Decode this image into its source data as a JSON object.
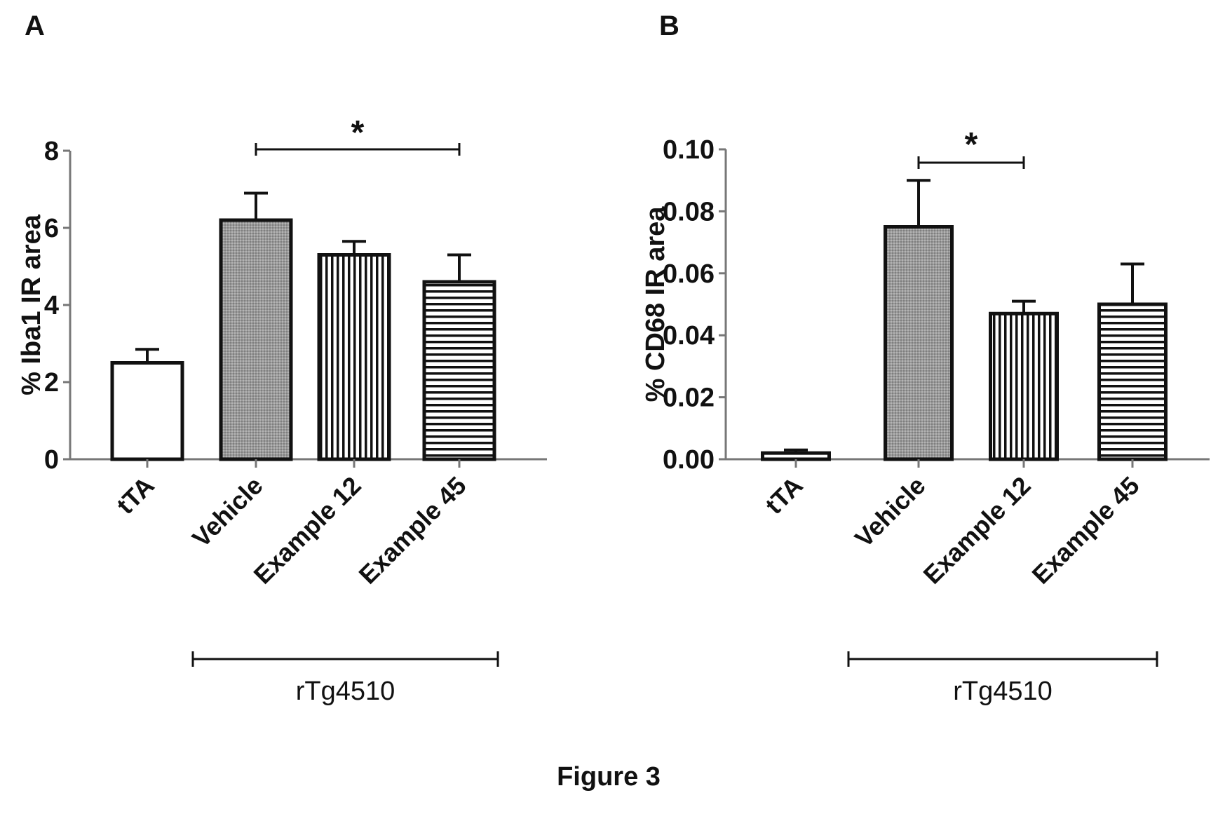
{
  "figure": {
    "caption": "Figure 3"
  },
  "chart_data": [
    {
      "panel": "A",
      "type": "bar",
      "ylabel": "% Iba1 IR area",
      "ylim": [
        0,
        8
      ],
      "yticks": [
        0,
        2,
        4,
        6,
        8
      ],
      "categories": [
        "tTA",
        "Vehicle",
        "Example 12",
        "Example 45"
      ],
      "values": [
        2.5,
        6.2,
        5.3,
        4.6
      ],
      "errors": [
        0.35,
        0.7,
        0.35,
        0.7
      ],
      "fills": [
        "white",
        "gray",
        "vertical-stripes",
        "horizontal-stripes"
      ],
      "significance": {
        "from": 1,
        "to": 3,
        "label": "*"
      },
      "group": {
        "from": 1,
        "to": 3,
        "label": "rTg4510"
      },
      "grid": false
    },
    {
      "panel": "B",
      "type": "bar",
      "ylabel": "% CD68 IR area",
      "ylim": [
        0,
        0.1
      ],
      "yticks": [
        "0.00",
        "0.02",
        "0.04",
        "0.06",
        "0.08",
        "0.10"
      ],
      "categories": [
        "tTA",
        "Vehicle",
        "Example 12",
        "Example 45"
      ],
      "values": [
        0.002,
        0.075,
        0.047,
        0.05
      ],
      "errors": [
        0.001,
        0.015,
        0.004,
        0.013
      ],
      "fills": [
        "white",
        "gray",
        "vertical-stripes",
        "horizontal-stripes"
      ],
      "significance": {
        "from": 1,
        "to": 2,
        "label": "*"
      },
      "group": {
        "from": 1,
        "to": 3,
        "label": "rTg4510"
      },
      "grid": false
    }
  ]
}
